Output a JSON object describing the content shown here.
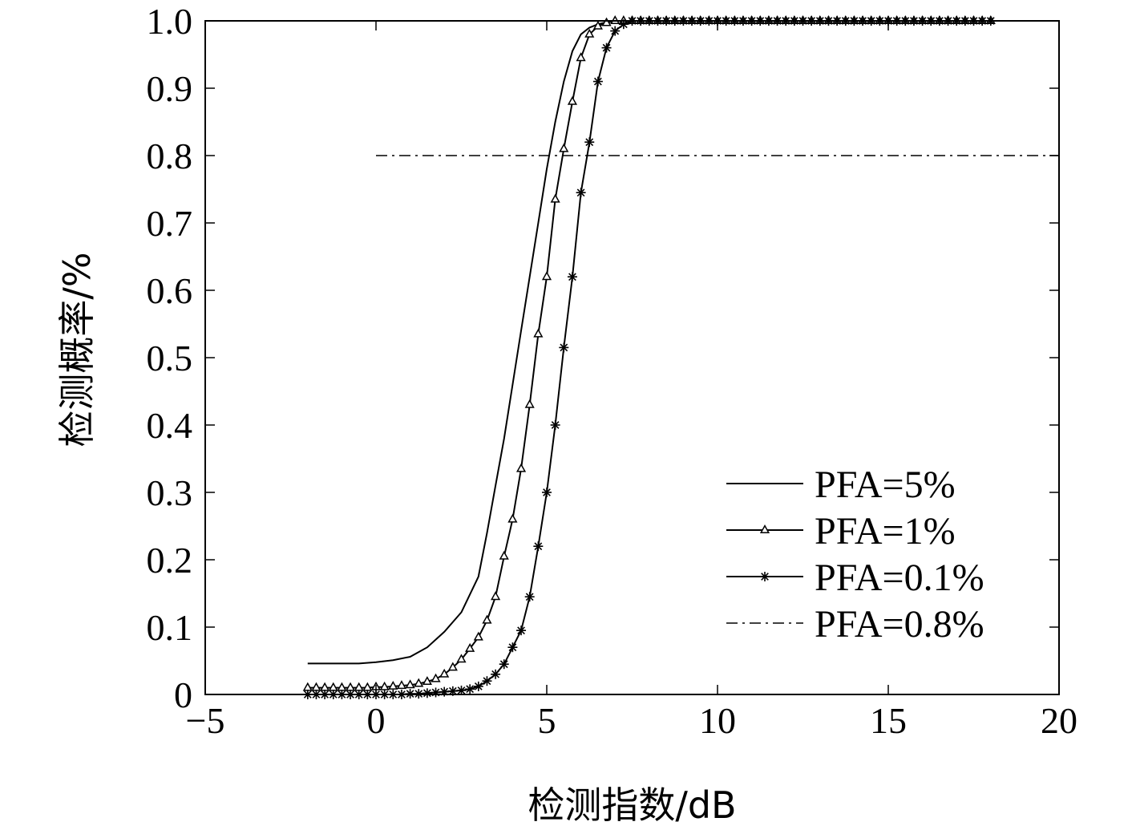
{
  "chart_data": {
    "type": "line",
    "xlabel": "检测指数/dB",
    "ylabel": "检测概率/%",
    "xlim": [
      -5,
      20
    ],
    "ylim": [
      0,
      1.0
    ],
    "x_ticks": [
      -5,
      0,
      5,
      10,
      15,
      20
    ],
    "x_tick_labels": [
      "−5",
      "0",
      "5",
      "10",
      "15",
      "20"
    ],
    "y_ticks": [
      0,
      0.1,
      0.2,
      0.3,
      0.4,
      0.5,
      0.6,
      0.7,
      0.8,
      0.9,
      1.0
    ],
    "y_tick_labels": [
      "0",
      "0.1",
      "0.2",
      "0.3",
      "0.4",
      "0.5",
      "0.6",
      "0.7",
      "0.8",
      "0.9",
      "1.0"
    ],
    "grid": false,
    "legend_position": "lower-right",
    "series": [
      {
        "name": "PFA=5%",
        "style": "solid",
        "x": [
          -2,
          -1.5,
          -1,
          -0.5,
          0,
          0.5,
          1,
          1.5,
          2,
          2.5,
          3,
          3.25,
          3.5,
          3.75,
          4,
          4.25,
          4.5,
          4.75,
          5,
          5.25,
          5.5,
          5.75,
          6,
          6.25,
          6.5,
          6.75,
          7,
          7.5,
          8,
          10,
          12,
          14,
          16,
          18
        ],
        "y": [
          0.046,
          0.046,
          0.046,
          0.046,
          0.048,
          0.051,
          0.056,
          0.07,
          0.093,
          0.122,
          0.175,
          0.24,
          0.31,
          0.38,
          0.46,
          0.54,
          0.62,
          0.7,
          0.78,
          0.85,
          0.91,
          0.955,
          0.98,
          0.99,
          0.995,
          0.998,
          1.0,
          1.0,
          1.0,
          1.0,
          1.0,
          1.0,
          1.0,
          1.0
        ]
      },
      {
        "name": "PFA=1%",
        "style": "solid-triangle",
        "x": [
          -2,
          -1.75,
          -1.5,
          -1.25,
          -1,
          -0.75,
          -0.5,
          -0.25,
          0,
          0.25,
          0.5,
          0.75,
          1,
          1.25,
          1.5,
          1.75,
          2,
          2.25,
          2.5,
          2.75,
          3,
          3.25,
          3.5,
          3.75,
          4,
          4.25,
          4.5,
          4.75,
          5,
          5.25,
          5.5,
          5.75,
          6,
          6.25,
          6.5,
          6.75,
          7,
          7.25,
          7.5,
          7.75,
          8,
          8.25,
          8.5,
          8.75,
          9,
          9.25,
          9.5,
          9.75,
          10,
          10.25,
          10.5,
          10.75,
          11,
          11.25,
          11.5,
          11.75,
          12,
          12.25,
          12.5,
          12.75,
          13,
          13.25,
          13.5,
          13.75,
          14,
          14.25,
          14.5,
          14.75,
          15,
          15.25,
          15.5,
          15.75,
          16,
          16.25,
          16.5,
          16.75,
          17,
          17.25,
          17.5,
          17.75,
          18
        ],
        "y": [
          0.01,
          0.01,
          0.01,
          0.01,
          0.01,
          0.01,
          0.01,
          0.01,
          0.011,
          0.011,
          0.012,
          0.013,
          0.014,
          0.016,
          0.019,
          0.023,
          0.03,
          0.04,
          0.052,
          0.068,
          0.085,
          0.11,
          0.145,
          0.205,
          0.26,
          0.335,
          0.43,
          0.535,
          0.62,
          0.735,
          0.81,
          0.88,
          0.945,
          0.98,
          0.992,
          0.997,
          1.0,
          1.0,
          1.0,
          1.0,
          1.0,
          1.0,
          1.0,
          1.0,
          1.0,
          1.0,
          1.0,
          1.0,
          1.0,
          1.0,
          1.0,
          1.0,
          1.0,
          1.0,
          1.0,
          1.0,
          1.0,
          1.0,
          1.0,
          1.0,
          1.0,
          1.0,
          1.0,
          1.0,
          1.0,
          1.0,
          1.0,
          1.0,
          1.0,
          1.0,
          1.0,
          1.0,
          1.0,
          1.0,
          1.0,
          1.0,
          1.0,
          1.0,
          1.0,
          1.0,
          1.0
        ]
      },
      {
        "name": "PFA=0.1%",
        "style": "solid-star",
        "x": [
          -2,
          -1.75,
          -1.5,
          -1.25,
          -1,
          -0.75,
          -0.5,
          -0.25,
          0,
          0.25,
          0.5,
          0.75,
          1,
          1.25,
          1.5,
          1.75,
          2,
          2.25,
          2.5,
          2.75,
          3,
          3.25,
          3.5,
          3.75,
          4,
          4.25,
          4.5,
          4.75,
          5,
          5.25,
          5.5,
          5.75,
          6,
          6.25,
          6.5,
          6.75,
          7,
          7.25,
          7.5,
          7.75,
          8,
          8.25,
          8.5,
          8.75,
          9,
          9.25,
          9.5,
          9.75,
          10,
          10.25,
          10.5,
          10.75,
          11,
          11.25,
          11.5,
          11.75,
          12,
          12.25,
          12.5,
          12.75,
          13,
          13.25,
          13.5,
          13.75,
          14,
          14.25,
          14.5,
          14.75,
          15,
          15.25,
          15.5,
          15.75,
          16,
          16.25,
          16.5,
          16.75,
          17,
          17.25,
          17.5,
          17.75,
          18
        ],
        "y": [
          0.0,
          0.0,
          0.0,
          0.0,
          0.0,
          0.0,
          0.0,
          0.0,
          0.0,
          0.0,
          0.0,
          0.0,
          0.001,
          0.001,
          0.002,
          0.003,
          0.004,
          0.005,
          0.006,
          0.008,
          0.012,
          0.02,
          0.03,
          0.045,
          0.07,
          0.095,
          0.145,
          0.22,
          0.3,
          0.4,
          0.515,
          0.62,
          0.745,
          0.82,
          0.91,
          0.96,
          0.985,
          0.995,
          1.0,
          1.0,
          1.0,
          1.0,
          1.0,
          1.0,
          1.0,
          1.0,
          1.0,
          1.0,
          1.0,
          1.0,
          1.0,
          1.0,
          1.0,
          1.0,
          1.0,
          1.0,
          1.0,
          1.0,
          1.0,
          1.0,
          1.0,
          1.0,
          1.0,
          1.0,
          1.0,
          1.0,
          1.0,
          1.0,
          1.0,
          1.0,
          1.0,
          1.0,
          1.0,
          1.0,
          1.0,
          1.0,
          1.0,
          1.0,
          1.0,
          1.0,
          1.0
        ]
      },
      {
        "name": "PFA=0.8%",
        "style": "dash-dot",
        "x": [
          0,
          20
        ],
        "y": [
          0.8,
          0.8
        ]
      }
    ]
  }
}
